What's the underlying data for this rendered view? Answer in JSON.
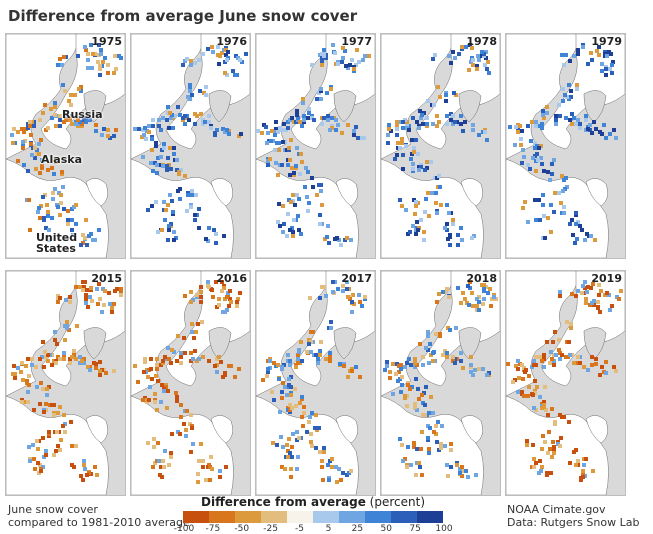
{
  "title": "Difference from average June snow cover",
  "panels": [
    {
      "year": "1975",
      "tone": "mixed"
    },
    {
      "year": "1976",
      "tone": "blue"
    },
    {
      "year": "1977",
      "tone": "blue"
    },
    {
      "year": "1978",
      "tone": "blue"
    },
    {
      "year": "1979",
      "tone": "blue"
    },
    {
      "year": "2015",
      "tone": "orange"
    },
    {
      "year": "2016",
      "tone": "orange"
    },
    {
      "year": "2017",
      "tone": "mixed"
    },
    {
      "year": "2018",
      "tone": "mixed"
    },
    {
      "year": "2019",
      "tone": "orange"
    }
  ],
  "map_labels": {
    "russia": "Russia",
    "alaska": "Alaska",
    "united_states": "United States"
  },
  "legend": {
    "title": "Difference from average",
    "units": "(percent)",
    "ticks": [
      "-100",
      "-75",
      "-50",
      "-25",
      "-5",
      "5",
      "25",
      "50",
      "75",
      "100"
    ],
    "colors": [
      "#c8500f",
      "#d8761e",
      "#dd9a3c",
      "#e3bd7e",
      "#f7f3ea",
      "#a9c9ec",
      "#6fa6e2",
      "#3f83d6",
      "#2b5fb9",
      "#1e3f96"
    ]
  },
  "footer": {
    "left_line1": "June snow cover",
    "left_line2": "compared to 1981-2010 average",
    "right_line1": "NOAA Cimate.gov",
    "right_line2": "Data: Rutgers Snow Lab"
  }
}
